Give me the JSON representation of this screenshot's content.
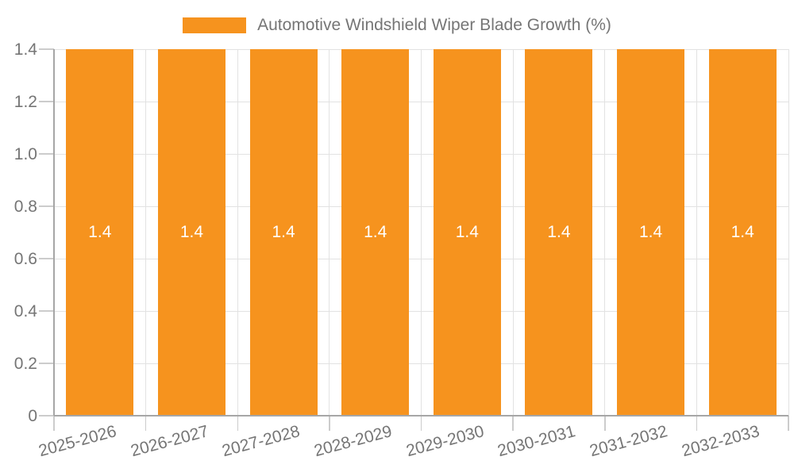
{
  "legend_position": "top",
  "chart_data": {
    "type": "bar",
    "title": "Automotive Windshield Wiper Blade Growth (%)",
    "legend": "Automotive Windshield Wiper Blade Growth (%)",
    "categories": [
      "2025-2026",
      "2026-2027",
      "2027-2028",
      "2028-2029",
      "2029-2030",
      "2030-2031",
      "2031-2032",
      "2032-2033"
    ],
    "series": [
      {
        "name": "Automotive Windshield Wiper Blade Growth (%)",
        "values": [
          1.4,
          1.4,
          1.4,
          1.4,
          1.4,
          1.4,
          1.4,
          1.4
        ]
      }
    ],
    "bar_value_labels": [
      "1.4",
      "1.4",
      "1.4",
      "1.4",
      "1.4",
      "1.4",
      "1.4",
      "1.4"
    ],
    "xlabel": "",
    "ylabel": "",
    "ylim": [
      0,
      1.4
    ],
    "yticks": {
      "values": [
        0,
        0.2,
        0.4,
        0.6,
        0.8,
        1.0,
        1.2,
        1.4
      ],
      "labels": [
        "0",
        "0.2",
        "0.4",
        "0.6",
        "0.8",
        "1.0",
        "1.2",
        "1.4"
      ]
    },
    "grid": true,
    "legend_position": "top",
    "colors": {
      "bar": "#F6931E",
      "grid": "#E2E2E2",
      "axis": "#A6A6A6",
      "tick": "#CCCCCC",
      "text": "#757575",
      "bar_label": "#FFFFFF",
      "background": "#FFFFFF"
    }
  }
}
